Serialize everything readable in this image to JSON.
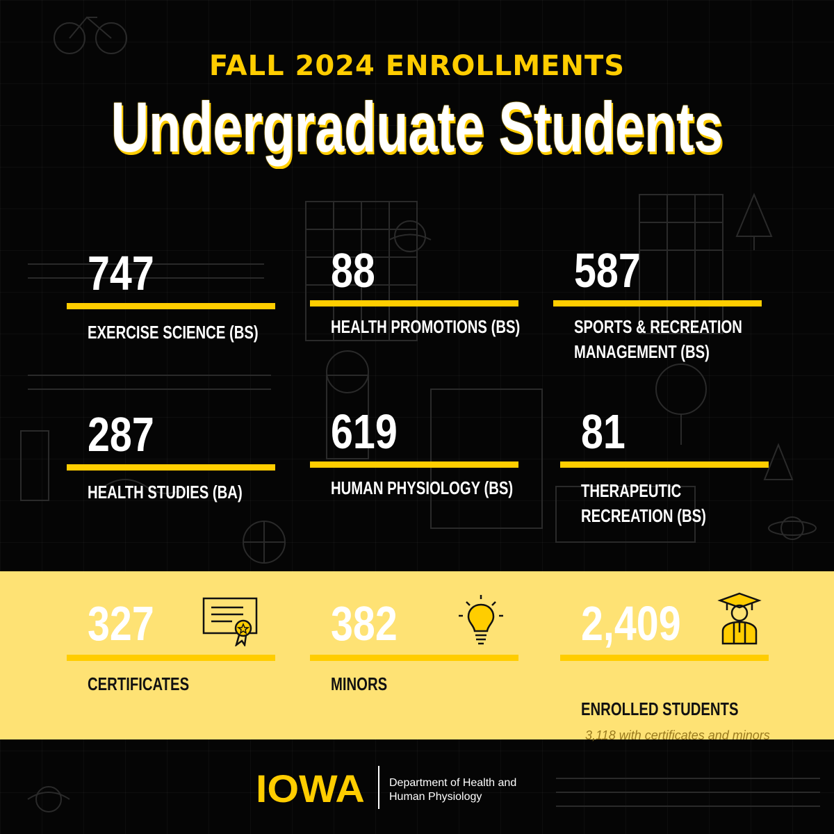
{
  "header": {
    "subtitle": "FALL 2024 ENROLLMENTS",
    "title": "Undergraduate Students"
  },
  "programs": [
    {
      "count": "747",
      "label_lines": [
        "EXERCISE SCIENCE (BS)"
      ]
    },
    {
      "count": "88",
      "label_lines": [
        "HEALTH PROMOTIONS (BS)"
      ]
    },
    {
      "count": "587",
      "label_lines": [
        "SPORTS & RECREATION",
        "MANAGEMENT (BS)"
      ]
    },
    {
      "count": "287",
      "label_lines": [
        "HEALTH STUDIES (BA)"
      ]
    },
    {
      "count": "619",
      "label_lines": [
        "HUMAN PHYSIOLOGY (BS)"
      ]
    },
    {
      "count": "81",
      "label_lines": [
        "THERAPEUTIC",
        "RECREATION (BS)"
      ]
    }
  ],
  "totals": [
    {
      "count": "327",
      "label": "CERTIFICATES",
      "icon": "certificate-icon"
    },
    {
      "count": "382",
      "label": "MINORS",
      "icon": "lightbulb-icon"
    },
    {
      "count": "2,409",
      "label": "ENROLLED STUDENTS",
      "icon": "graduate-icon",
      "note": "3,118 with certificates and minors"
    }
  ],
  "footer": {
    "logo": "IOWA",
    "department_lines": [
      "Department of Health and",
      "Human Physiology"
    ]
  },
  "colors": {
    "gold": "#FFCD00",
    "band": "#FEE274",
    "background": "#050505",
    "text": "#FFFFFF"
  }
}
